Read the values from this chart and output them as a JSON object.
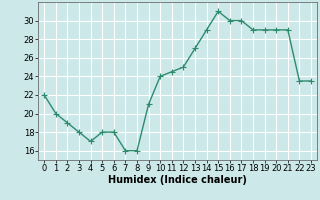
{
  "x": [
    0,
    1,
    2,
    3,
    4,
    5,
    6,
    7,
    8,
    9,
    10,
    11,
    12,
    13,
    14,
    15,
    16,
    17,
    18,
    19,
    20,
    21,
    22,
    23
  ],
  "y": [
    22,
    20,
    19,
    18,
    17,
    18,
    18,
    16,
    16,
    21,
    24,
    24.5,
    25,
    27,
    29,
    31,
    30,
    30,
    29,
    29,
    29,
    29,
    23.5,
    23.5
  ],
  "line_color": "#2e8b6e",
  "marker": "+",
  "marker_size": 4,
  "marker_color": "#2e8b6e",
  "bg_color": "#cce8e8",
  "grid_color": "#ffffff",
  "xlabel": "Humidex (Indice chaleur)",
  "ylim": [
    15,
    32
  ],
  "xlim": [
    -0.5,
    23.5
  ],
  "yticks": [
    16,
    18,
    20,
    22,
    24,
    26,
    28,
    30
  ],
  "xticks": [
    0,
    1,
    2,
    3,
    4,
    5,
    6,
    7,
    8,
    9,
    10,
    11,
    12,
    13,
    14,
    15,
    16,
    17,
    18,
    19,
    20,
    21,
    22,
    23
  ],
  "xlabel_fontsize": 7,
  "tick_fontsize": 6,
  "line_width": 1.0
}
